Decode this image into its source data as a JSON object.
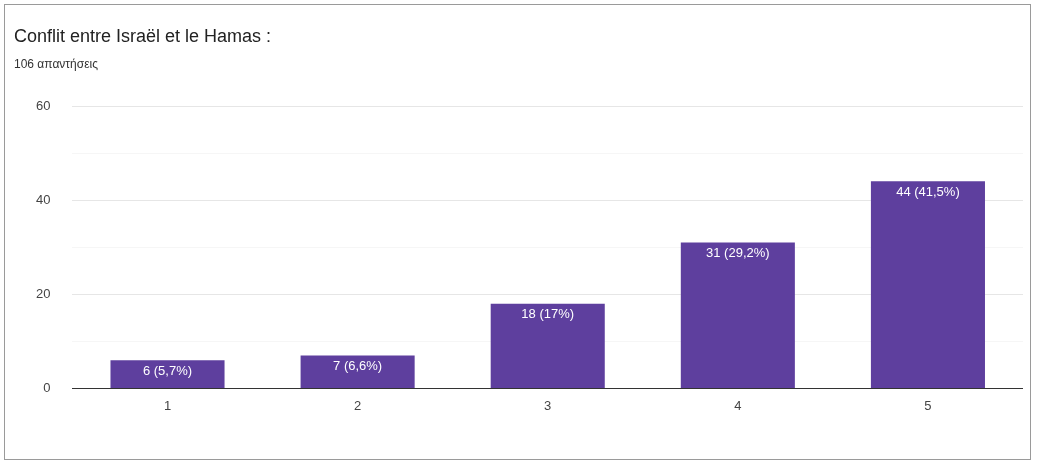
{
  "chart_data": {
    "type": "bar",
    "title": "Conflit entre Israël et le Hamas :",
    "subtitle": "106 απαντήσεις",
    "categories": [
      "1",
      "2",
      "3",
      "4",
      "5"
    ],
    "values": [
      6,
      7,
      18,
      31,
      44
    ],
    "value_labels": [
      "6 (5,7%)",
      "7 (6,6%)",
      "18 (17%)",
      "31 (29,2%)",
      "44 (41,5%)"
    ],
    "color": "#5e3f9e",
    "ylim": [
      0,
      60
    ],
    "yticks": [
      0,
      {
        "value": 10,
        "label": null
      },
      20,
      {
        "value": 30,
        "label": null
      },
      40,
      {
        "value": 50,
        "label": null
      },
      60
    ],
    "grid": "y",
    "legend": false
  }
}
